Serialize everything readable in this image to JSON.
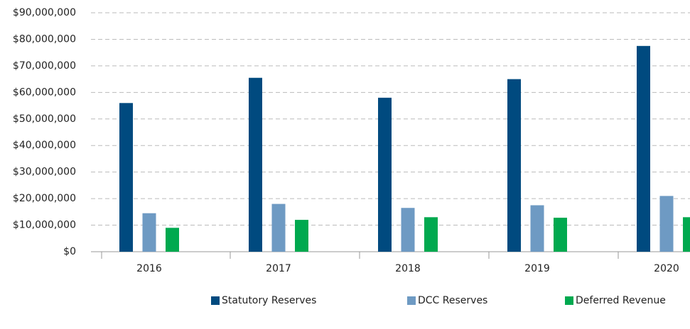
{
  "chart_data": {
    "type": "bar",
    "categories": [
      "2016",
      "2017",
      "2018",
      "2019",
      "2020"
    ],
    "series": [
      {
        "name": "Statutory Reserves",
        "color": "#004a7f",
        "values": [
          56000000,
          65500000,
          58000000,
          65000000,
          77500000
        ]
      },
      {
        "name": "DCC Reserves",
        "color": "#6e9ac3",
        "values": [
          14500000,
          18000000,
          16500000,
          17500000,
          21000000
        ]
      },
      {
        "name": "Deferred Revenue",
        "color": "#00a94f",
        "values": [
          9000000,
          12000000,
          13000000,
          12800000,
          13000000
        ]
      }
    ],
    "ylim": [
      0,
      90000000
    ],
    "yticks": [
      {
        "value": 0,
        "label": "$0"
      },
      {
        "value": 10000000,
        "label": "$10,000,000"
      },
      {
        "value": 20000000,
        "label": "$20,000,000"
      },
      {
        "value": 30000000,
        "label": "$30,000,000"
      },
      {
        "value": 40000000,
        "label": "$40,000,000"
      },
      {
        "value": 50000000,
        "label": "$50,000,000"
      },
      {
        "value": 60000000,
        "label": "$60,000,000"
      },
      {
        "value": 70000000,
        "label": "$70,000,000"
      },
      {
        "value": 80000000,
        "label": "$80,000,000"
      },
      {
        "value": 90000000,
        "label": "$90,000,000"
      }
    ],
    "grid": true,
    "legend": "bottom"
  }
}
